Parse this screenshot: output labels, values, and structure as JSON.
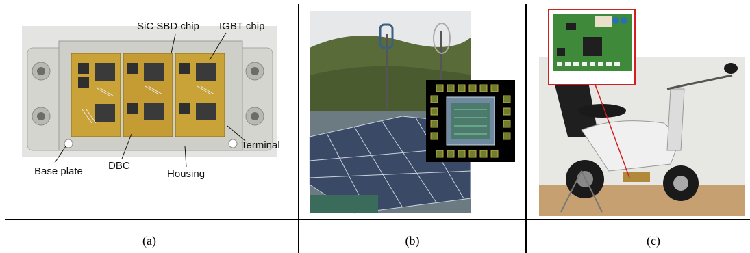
{
  "panels": [
    {
      "caption": "(a)",
      "labels": {
        "sic_sbd_chip": "SiC SBD chip",
        "igbt_chip": "IGBT chip",
        "terminal": "Terminal",
        "base_plate": "Base plate",
        "dbc": "DBC",
        "housing": "Housing"
      }
    },
    {
      "caption": "(b)"
    },
    {
      "caption": "(c)"
    }
  ],
  "colors": {
    "module_gold": "#c9a238",
    "housing_gray": "#d8d8d4",
    "sky": "#e6e8ea",
    "forest": "#5a6b3a",
    "solar_blue": "#3a4a66",
    "pcb_green": "#3f8a3a",
    "highlight_red": "#d21f1f"
  }
}
